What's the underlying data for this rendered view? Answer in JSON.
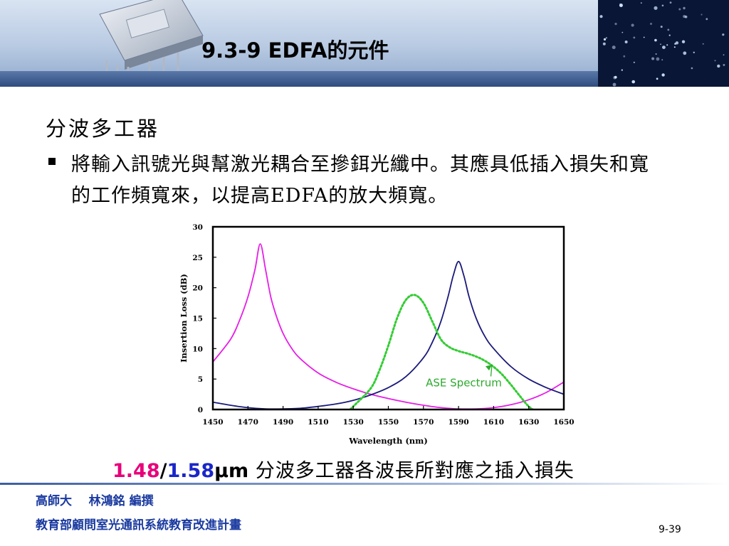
{
  "slide": {
    "title": "9.3-9 EDFA的元件",
    "subtitle": "分波多工器",
    "bullet": "將輸入訊號光與幫激光耦合至摻鉺光纖中。其應具低插入損失和寬的工作頻寬來，以提高EDFA的放大頻寬。",
    "caption": {
      "part1": "1.48",
      "sep": "/",
      "part2": "1.58",
      "unit": "μm",
      "text": " 分波多工器各波長所對應之插入損失"
    },
    "footer": {
      "line1": "高師大    林鴻銘 編撰",
      "line2": "教育部顧問室光通訊系統教育改進計畫"
    },
    "page_number": "9-39"
  },
  "colors": {
    "pink_curve": "#e61ee6",
    "blue_curve": "#1a1a7a",
    "ase_curve": "#33cc33",
    "caption_pink": "#e8007a",
    "caption_blue": "#1a26c8",
    "footer_text": "#1a3aa0"
  },
  "chart_data": {
    "type": "line",
    "xlabel": "Wavelength (nm)",
    "ylabel": "Insertion Loss (dB)",
    "xlim": [
      1450,
      1650
    ],
    "ylim": [
      0,
      30
    ],
    "xticks": [
      1450,
      1470,
      1490,
      1510,
      1530,
      1550,
      1570,
      1590,
      1610,
      1630,
      1650
    ],
    "yticks": [
      0,
      5,
      10,
      15,
      20,
      25,
      30
    ],
    "grid": false,
    "series": [
      {
        "style": "solid",
        "color": "#e61ee6",
        "x": [
          1450,
          1460,
          1465,
          1470,
          1474,
          1477,
          1480,
          1483,
          1486,
          1490,
          1495,
          1500,
          1510,
          1520,
          1530,
          1540,
          1550,
          1560,
          1570,
          1580,
          1590,
          1600,
          1610,
          1620,
          1630,
          1640,
          1650
        ],
        "y": [
          7.8,
          11.5,
          14.5,
          18.5,
          23.0,
          27.2,
          23.0,
          18.5,
          15.5,
          12.5,
          10.0,
          8.3,
          6.0,
          4.5,
          3.4,
          2.5,
          1.8,
          1.2,
          0.7,
          0.3,
          0.1,
          0.1,
          0.3,
          0.8,
          1.6,
          2.8,
          4.5
        ]
      },
      {
        "style": "solid",
        "color": "#1a1a7a",
        "x": [
          1450,
          1460,
          1470,
          1480,
          1490,
          1500,
          1510,
          1520,
          1530,
          1540,
          1550,
          1560,
          1570,
          1575,
          1580,
          1584,
          1587,
          1590,
          1593,
          1596,
          1600,
          1605,
          1610,
          1620,
          1630,
          1640,
          1650
        ],
        "y": [
          1.2,
          0.7,
          0.3,
          0.1,
          0.1,
          0.2,
          0.5,
          0.9,
          1.5,
          2.4,
          3.6,
          5.4,
          8.5,
          11.0,
          14.5,
          18.5,
          22.0,
          24.3,
          22.0,
          18.5,
          15.0,
          12.0,
          10.0,
          7.0,
          5.0,
          3.6,
          2.5
        ]
      },
      {
        "style": "dotted",
        "color": "#33cc33",
        "x": [
          1521,
          1530,
          1540,
          1545,
          1550,
          1555,
          1560,
          1565,
          1570,
          1575,
          1580,
          1585,
          1590,
          1595,
          1600,
          1605,
          1610,
          1615,
          1620,
          1625,
          1630,
          1635,
          1640,
          1642
        ],
        "y": [
          -2.0,
          0.5,
          3.5,
          6.5,
          10.5,
          15.0,
          18.0,
          18.8,
          17.5,
          14.5,
          11.5,
          10.2,
          9.6,
          9.2,
          8.7,
          8.0,
          7.0,
          5.7,
          4.0,
          2.2,
          0.5,
          -0.5,
          -1.5,
          -2.0
        ]
      }
    ],
    "annotations": [
      {
        "text": "ASE Spectrum",
        "x": 1593,
        "y": 3.8,
        "arrow_to": [
          1607,
          7.8
        ]
      }
    ]
  }
}
